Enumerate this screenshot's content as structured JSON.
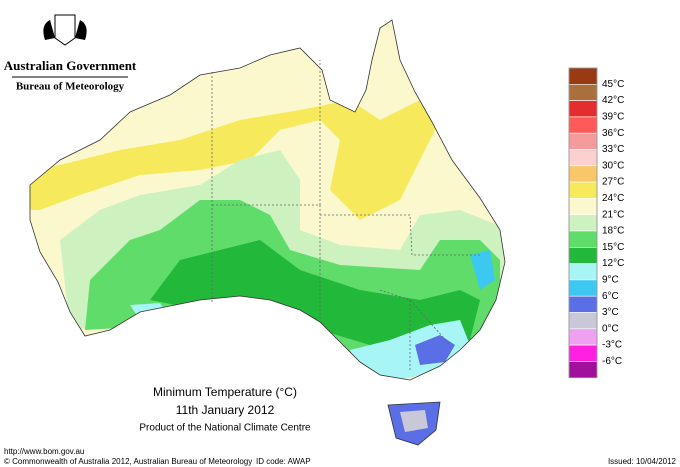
{
  "header": {
    "government": "Australian Government",
    "bureau": "Bureau of Meteorology"
  },
  "legend": {
    "colors": [
      "#9a3a12",
      "#a9703e",
      "#e62d2d",
      "#ff5a5a",
      "#f59b9b",
      "#fdd0d0",
      "#f7c76a",
      "#f6ea5c",
      "#faf8cc",
      "#cdf2c0",
      "#5fdc6a",
      "#22b83a",
      "#a8f5f5",
      "#3cc8f0",
      "#5a6ee6",
      "#c8c8d8",
      "#f0a0f0",
      "#ff20e0",
      "#a0109c"
    ],
    "labels": [
      "45°C",
      "42°C",
      "39°C",
      "36°C",
      "33°C",
      "30°C",
      "27°C",
      "24°C",
      "21°C",
      "18°C",
      "15°C",
      "12°C",
      "9°C",
      "6°C",
      "3°C",
      "0°C",
      "-3°C",
      "-6°C"
    ]
  },
  "caption": {
    "title": "Minimum Temperature (°C)",
    "date": "11th January 2012",
    "product": "Product of the National Climate Centre"
  },
  "footer": {
    "url": "http://www.bom.gov.au",
    "copyright": "© Commonwealth of Australia 2012, Australian Bureau of Meteorology",
    "id_code": "ID code: AWAP",
    "issued": "Issued: 10/04/2012"
  }
}
